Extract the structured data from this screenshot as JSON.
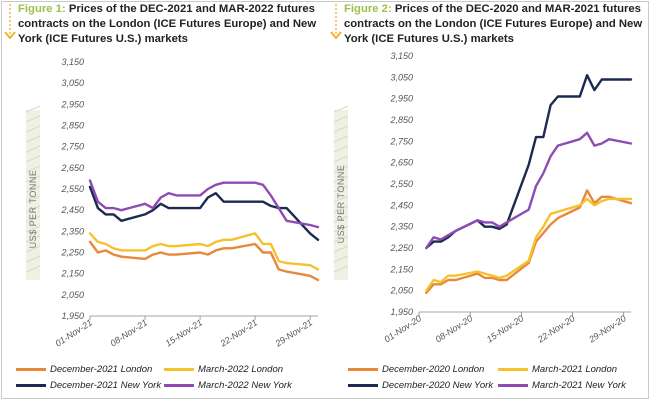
{
  "figures": [
    {
      "fig_label": "Figure 1:",
      "caption": "Prices of the DEC-2021 and MAR-2022 futures contracts on the London (ICE Futures Europe) and New York (ICE Futures U.S.) markets",
      "icon": "chevron-down-icon",
      "legend": [
        {
          "name": "December-2021 London",
          "color": "#e8883a"
        },
        {
          "name": "March-2022 London",
          "color": "#f6c12e"
        },
        {
          "name": "December-2021 New York",
          "color": "#1d2a4f"
        },
        {
          "name": "March-2022 New York",
          "color": "#8e4bb4"
        }
      ]
    },
    {
      "fig_label": "Figure 2:",
      "caption": "Prices of the DEC-2020 and MAR-2021 futures contracts on the London (ICE Futures Europe) and New York (ICE Futures U.S.) markets",
      "icon": "chevron-down-icon",
      "legend": [
        {
          "name": "December-2020 London",
          "color": "#e8883a"
        },
        {
          "name": "March-2021 London",
          "color": "#f6c12e"
        },
        {
          "name": "December-2020 New York",
          "color": "#1d2a4f"
        },
        {
          "name": "March-2021 New York",
          "color": "#8e4bb4"
        }
      ]
    }
  ],
  "chart_data": [
    {
      "type": "line",
      "ylabel": "US$ PER TONNE",
      "ylim": [
        1950,
        3150
      ],
      "yticks": [
        "1,950",
        "2,050",
        "2,150",
        "2,250",
        "2,350",
        "2,450",
        "2,550",
        "2,650",
        "2,750",
        "2,850",
        "2,950",
        "3,050",
        "3,150"
      ],
      "x_range_days": [
        1,
        30
      ],
      "xticks": [
        {
          "day": 1,
          "label": "01-Nov-21"
        },
        {
          "day": 8,
          "label": "08-Nov-21"
        },
        {
          "day": 15,
          "label": "15-Nov-21"
        },
        {
          "day": 22,
          "label": "22-Nov-21"
        },
        {
          "day": 29,
          "label": "29-Nov-21"
        }
      ],
      "grid": false,
      "legend_position": "bottom",
      "series": [
        {
          "name": "December-2021 London",
          "color": "#e8883a",
          "x": [
            1,
            2,
            3,
            4,
            5,
            8,
            9,
            10,
            11,
            12,
            15,
            16,
            17,
            18,
            19,
            22,
            23,
            24,
            25,
            26,
            29,
            30
          ],
          "y": [
            2300,
            2250,
            2260,
            2240,
            2230,
            2220,
            2240,
            2250,
            2240,
            2240,
            2250,
            2240,
            2260,
            2270,
            2270,
            2290,
            2250,
            2250,
            2170,
            2160,
            2140,
            2120
          ]
        },
        {
          "name": "March-2022 London",
          "color": "#f6c12e",
          "x": [
            1,
            2,
            3,
            4,
            5,
            8,
            9,
            10,
            11,
            12,
            15,
            16,
            17,
            18,
            19,
            22,
            23,
            24,
            25,
            26,
            29,
            30
          ],
          "y": [
            2340,
            2300,
            2290,
            2270,
            2260,
            2260,
            2280,
            2290,
            2280,
            2280,
            2290,
            2280,
            2300,
            2310,
            2310,
            2340,
            2290,
            2290,
            2210,
            2200,
            2190,
            2170
          ]
        },
        {
          "name": "December-2021 New York",
          "color": "#1d2a4f",
          "x": [
            1,
            2,
            3,
            4,
            5,
            8,
            9,
            10,
            11,
            12,
            15,
            16,
            17,
            18,
            19,
            22,
            23,
            24,
            25,
            26,
            29,
            30
          ],
          "y": [
            2560,
            2460,
            2430,
            2430,
            2400,
            2430,
            2450,
            2480,
            2460,
            2460,
            2460,
            2510,
            2530,
            2490,
            2490,
            2490,
            2490,
            2470,
            2460,
            2460,
            2340,
            2310
          ]
        },
        {
          "name": "March-2022 New York",
          "color": "#8e4bb4",
          "x": [
            1,
            2,
            3,
            4,
            5,
            8,
            9,
            10,
            11,
            12,
            15,
            16,
            17,
            18,
            19,
            22,
            23,
            24,
            25,
            26,
            29,
            30
          ],
          "y": [
            2590,
            2490,
            2460,
            2460,
            2450,
            2480,
            2460,
            2510,
            2530,
            2520,
            2520,
            2550,
            2570,
            2580,
            2580,
            2580,
            2570,
            2520,
            2460,
            2400,
            2380,
            2370
          ]
        }
      ]
    },
    {
      "type": "line",
      "ylabel": "US$ PER TONNE",
      "ylim": [
        1950,
        3150
      ],
      "yticks": [
        "1,950",
        "2,050",
        "2,150",
        "2,250",
        "2,350",
        "2,450",
        "2,550",
        "2,650",
        "2,750",
        "2,850",
        "2,950",
        "3,050",
        "3,150"
      ],
      "x_range_days": [
        1,
        30
      ],
      "xticks": [
        {
          "day": 1,
          "label": "01-Nov-20"
        },
        {
          "day": 8,
          "label": "08-Nov-20"
        },
        {
          "day": 15,
          "label": "15-Nov-20"
        },
        {
          "day": 22,
          "label": "22-Nov-20"
        },
        {
          "day": 29,
          "label": "29-Nov-20"
        }
      ],
      "grid": false,
      "legend_position": "bottom",
      "series": [
        {
          "name": "December-2020 London",
          "color": "#e8883a",
          "x": [
            2,
            3,
            4,
            5,
            6,
            9,
            10,
            11,
            12,
            13,
            16,
            17,
            18,
            19,
            20,
            23,
            24,
            25,
            26,
            27,
            30
          ],
          "y": [
            2040,
            2080,
            2080,
            2100,
            2100,
            2130,
            2110,
            2110,
            2100,
            2100,
            2180,
            2280,
            2320,
            2360,
            2390,
            2440,
            2520,
            2460,
            2490,
            2490,
            2460
          ]
        },
        {
          "name": "March-2021 London",
          "color": "#f6c12e",
          "x": [
            2,
            3,
            4,
            5,
            6,
            9,
            10,
            11,
            12,
            13,
            16,
            17,
            18,
            19,
            20,
            23,
            24,
            25,
            26,
            27,
            30
          ],
          "y": [
            2050,
            2100,
            2090,
            2120,
            2120,
            2140,
            2130,
            2120,
            2110,
            2120,
            2190,
            2300,
            2350,
            2410,
            2420,
            2450,
            2480,
            2450,
            2470,
            2480,
            2480
          ]
        },
        {
          "name": "December-2020 New York",
          "color": "#1d2a4f",
          "x": [
            2,
            3,
            4,
            5,
            6,
            9,
            10,
            11,
            12,
            13,
            16,
            17,
            18,
            19,
            20,
            23,
            24,
            25,
            26,
            27,
            30
          ],
          "y": [
            2250,
            2280,
            2280,
            2300,
            2330,
            2380,
            2350,
            2350,
            2340,
            2360,
            2640,
            2770,
            2770,
            2920,
            2960,
            2960,
            3060,
            2990,
            3040,
            3040,
            3040
          ]
        },
        {
          "name": "March-2021 New York",
          "color": "#8e4bb4",
          "x": [
            2,
            3,
            4,
            5,
            6,
            9,
            10,
            11,
            12,
            13,
            16,
            17,
            18,
            19,
            20,
            23,
            24,
            25,
            26,
            27,
            30
          ],
          "y": [
            2250,
            2300,
            2290,
            2310,
            2330,
            2380,
            2370,
            2370,
            2350,
            2370,
            2430,
            2540,
            2600,
            2680,
            2730,
            2760,
            2790,
            2730,
            2740,
            2760,
            2740
          ]
        }
      ]
    }
  ]
}
